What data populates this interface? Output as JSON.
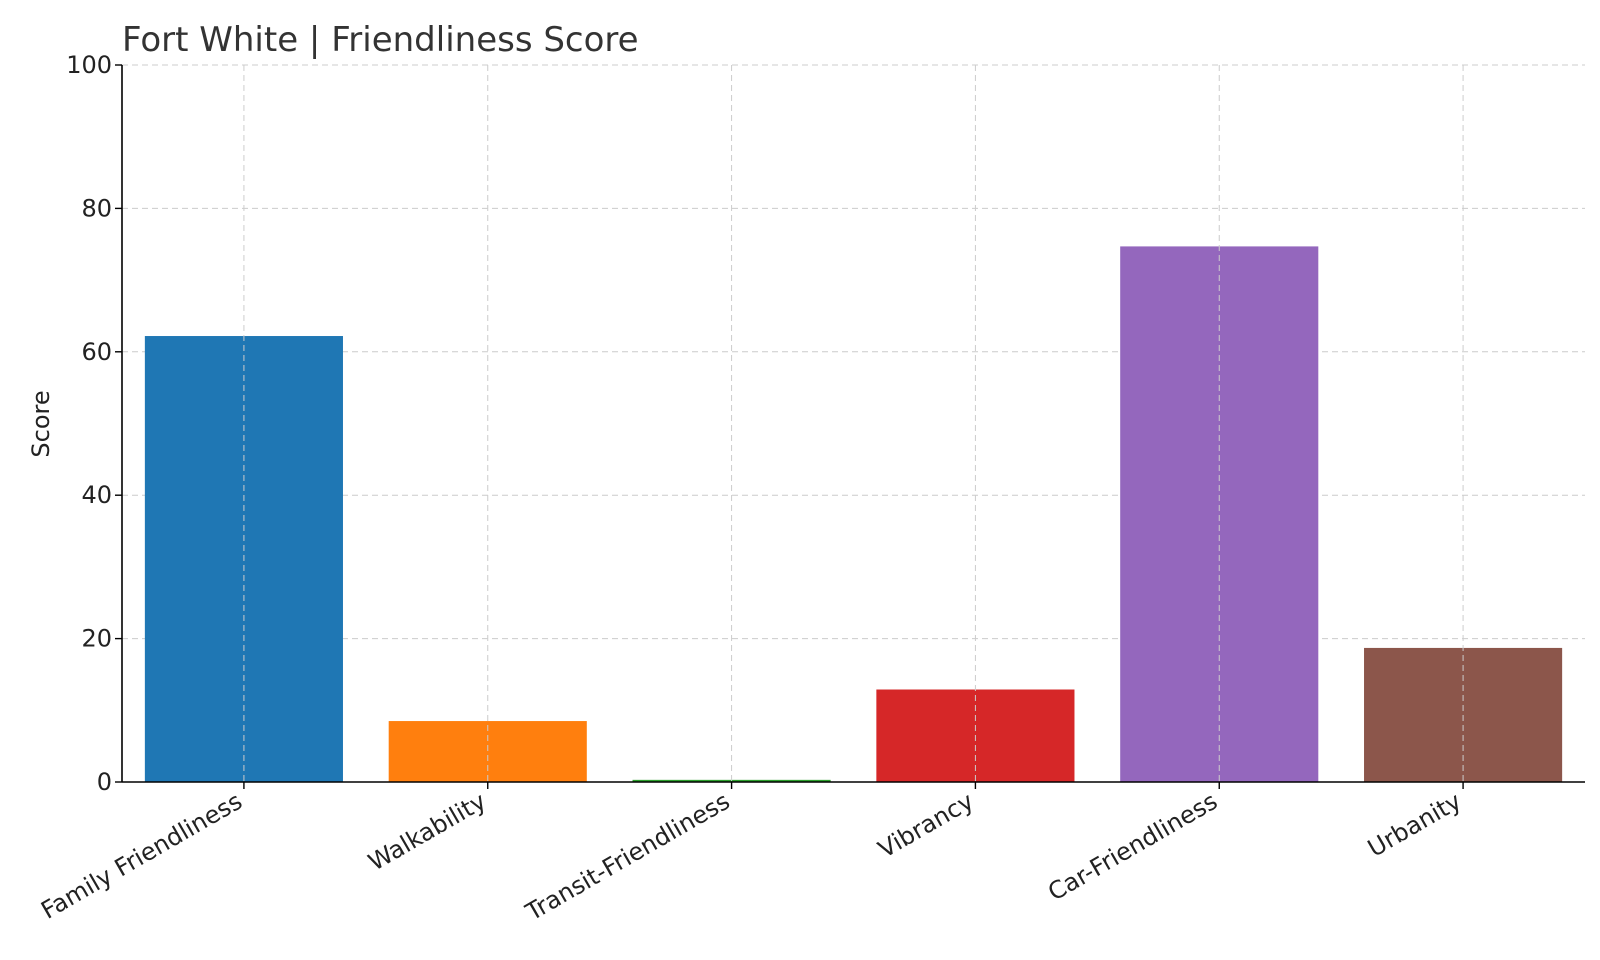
{
  "chart_data": {
    "type": "bar",
    "title": "Fort White |  Friendliness Score",
    "xlabel": "",
    "ylabel": "Score",
    "ylim": [
      0,
      100
    ],
    "yticks": [
      0,
      20,
      40,
      60,
      80,
      100
    ],
    "grid": true,
    "categories": [
      "Family Friendliness",
      "Walkability",
      "Transit-Friendliness",
      "Vibrancy",
      "Car-Friendliness",
      "Urbanity"
    ],
    "values": [
      62.2,
      8.5,
      0.3,
      12.9,
      74.7,
      18.7
    ],
    "colors": [
      "#1f77b4",
      "#ff7f0e",
      "#2ca02c",
      "#d62728",
      "#9467bd",
      "#8c564b"
    ]
  }
}
